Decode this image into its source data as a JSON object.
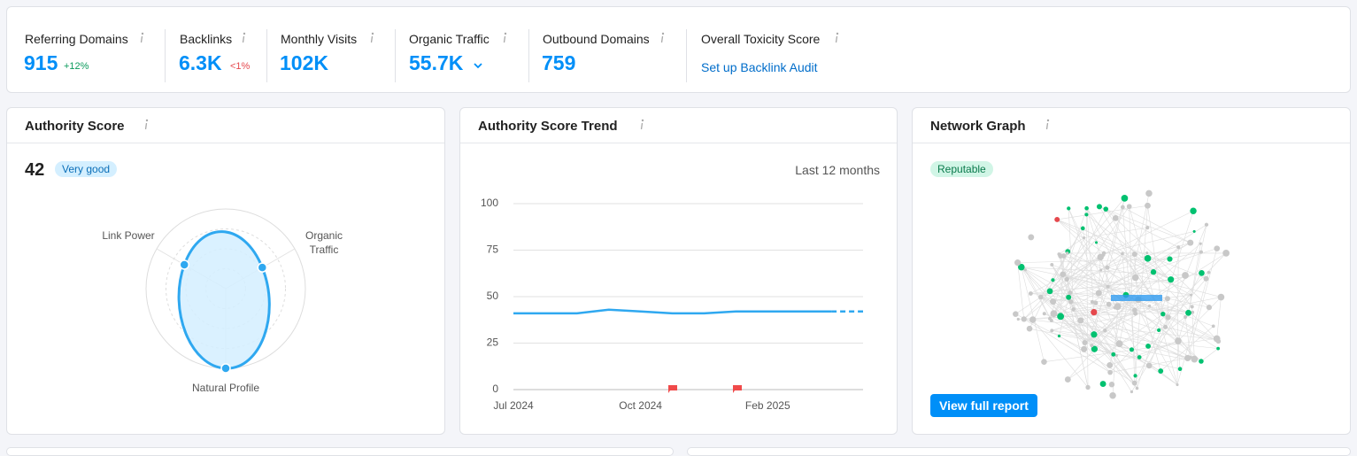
{
  "metrics": [
    {
      "label": "Referring Domains",
      "value": "915",
      "change": "+12%"
    },
    {
      "label": "Backlinks",
      "value": "6.3K",
      "change": "<1%"
    },
    {
      "label": "Monthly Visits",
      "value": "102K"
    },
    {
      "label": "Organic Traffic",
      "value": "55.7K"
    },
    {
      "label": "Outbound Domains",
      "value": "759"
    },
    {
      "label": "Overall Toxicity Score",
      "link": "Set up Backlink Audit"
    }
  ],
  "authority": {
    "score": "42",
    "badge": "Very good"
  },
  "network": {
    "title": "Network Graph",
    "badge": "Reputable",
    "button": "View full report"
  },
  "chart_data": [
    {
      "type": "radar",
      "title": "Authority Score",
      "axes": [
        "Link Power",
        "Organic Traffic",
        "Natural Profile"
      ],
      "values": [
        60,
        53,
        100
      ],
      "rlim": [
        0,
        100
      ],
      "color": "#2fa8f0"
    },
    {
      "type": "line",
      "title": "Authority Score Trend",
      "subtitle": "Last 12 months",
      "categories": [
        "Jul 2024",
        null,
        null,
        null,
        "Oct 2024",
        null,
        null,
        null,
        "Feb 2025",
        null,
        null,
        null
      ],
      "values": [
        41,
        41,
        41,
        43,
        42,
        41,
        41,
        42,
        42,
        42,
        42,
        42
      ],
      "color": "#2fa8f0",
      "ylim": [
        0,
        100
      ],
      "yticks": [
        0,
        25,
        50,
        75,
        100
      ],
      "grid": true
    }
  ]
}
